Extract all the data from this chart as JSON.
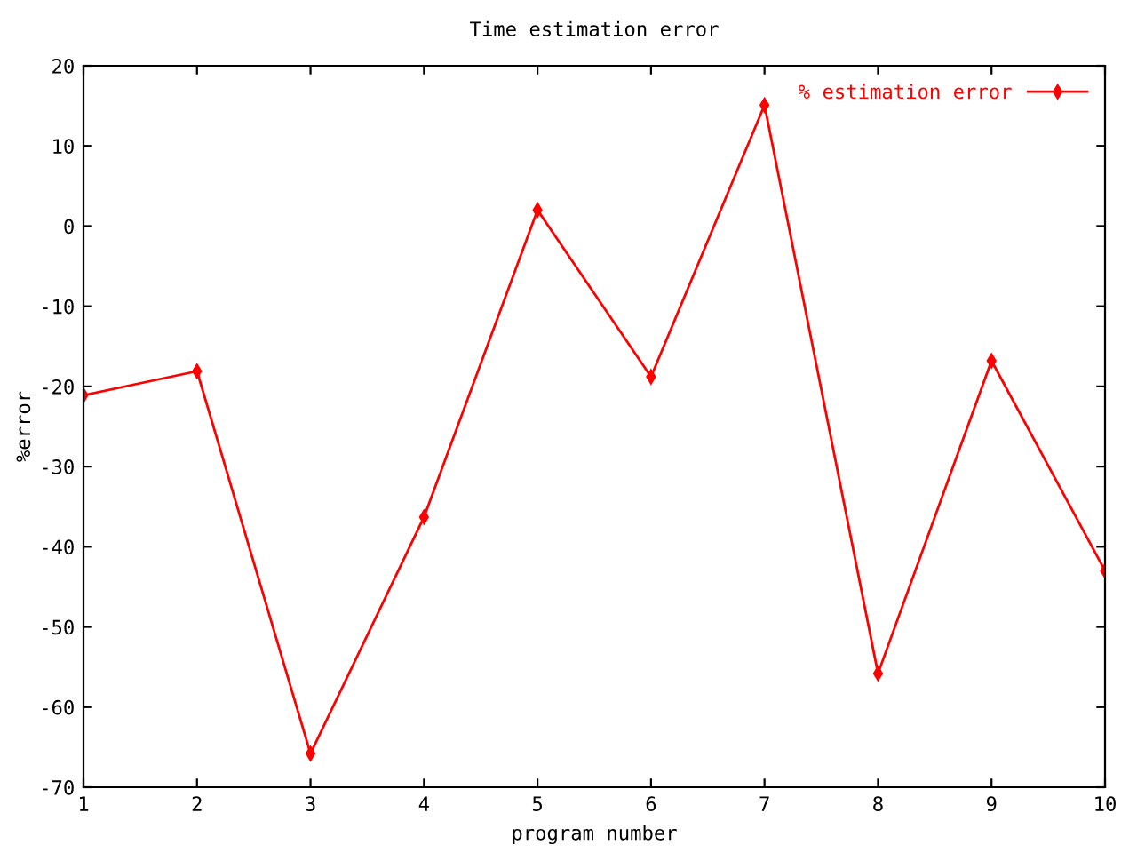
{
  "chart_data": {
    "type": "line",
    "title": "Time estimation error",
    "xlabel": "program number",
    "ylabel": "%error",
    "x": [
      1,
      2,
      3,
      4,
      5,
      6,
      7,
      8,
      9,
      10
    ],
    "series": [
      {
        "name": "% estimation error",
        "color": "#ff0000",
        "values": [
          -21.1,
          -18.1,
          -65.8,
          -36.3,
          2.0,
          -18.8,
          15.1,
          -55.8,
          -16.8,
          -43.0
        ]
      }
    ],
    "xlim": [
      1,
      10
    ],
    "xticks": [
      1,
      2,
      3,
      4,
      5,
      6,
      7,
      8,
      9,
      10
    ],
    "ylim": [
      -70,
      20
    ],
    "yticks": [
      -70,
      -60,
      -50,
      -40,
      -30,
      -20,
      -10,
      0,
      10,
      20
    ],
    "marker": "diamond",
    "line_style": "solid",
    "grid": false,
    "legend": "top right"
  }
}
